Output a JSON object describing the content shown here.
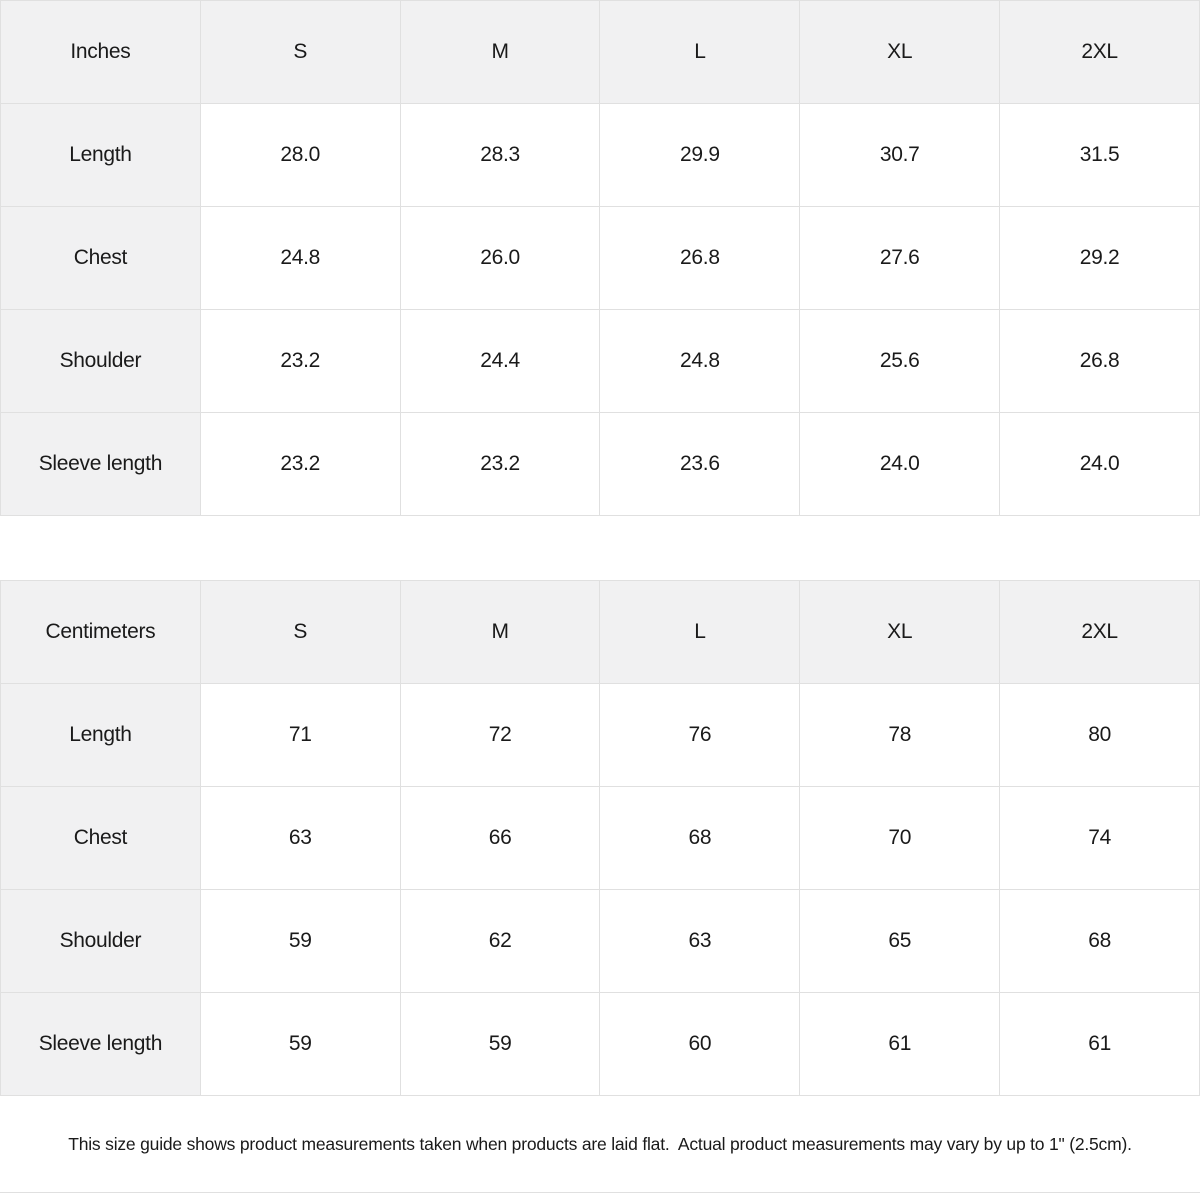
{
  "tables": [
    {
      "unit_label": "Inches",
      "sizes": [
        "S",
        "M",
        "L",
        "XL",
        "2XL"
      ],
      "rows": [
        {
          "label": "Length",
          "values": [
            "28.0",
            "28.3",
            "29.9",
            "30.7",
            "31.5"
          ]
        },
        {
          "label": "Chest",
          "values": [
            "24.8",
            "26.0",
            "26.8",
            "27.6",
            "29.2"
          ]
        },
        {
          "label": "Shoulder",
          "values": [
            "23.2",
            "24.4",
            "24.8",
            "25.6",
            "26.8"
          ]
        },
        {
          "label": "Sleeve length",
          "values": [
            "23.2",
            "23.2",
            "23.6",
            "24.0",
            "24.0"
          ]
        }
      ]
    },
    {
      "unit_label": "Centimeters",
      "sizes": [
        "S",
        "M",
        "L",
        "XL",
        "2XL"
      ],
      "rows": [
        {
          "label": "Length",
          "values": [
            "71",
            "72",
            "76",
            "78",
            "80"
          ]
        },
        {
          "label": "Chest",
          "values": [
            "63",
            "66",
            "68",
            "70",
            "74"
          ]
        },
        {
          "label": "Shoulder",
          "values": [
            "59",
            "62",
            "63",
            "65",
            "68"
          ]
        },
        {
          "label": "Sleeve length",
          "values": [
            "59",
            "59",
            "60",
            "61",
            "61"
          ]
        }
      ]
    }
  ],
  "footer": {
    "note": "This size guide shows product measurements taken when products are laid flat.  Actual product measurements may vary by up to 1\" (2.5cm)."
  },
  "colors": {
    "header_bg": "#f1f1f2",
    "cell_bg": "#ffffff",
    "border": "#e0e0e0",
    "text": "#1a1a1a"
  }
}
